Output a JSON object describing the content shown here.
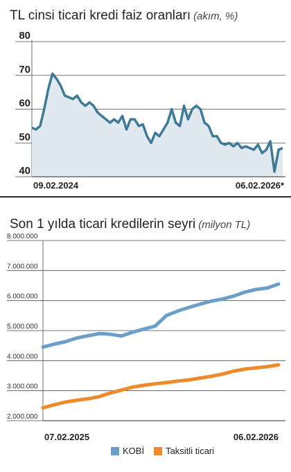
{
  "chart_data": [
    {
      "type": "area",
      "title": "TL cinsi ticari kredi faiz oranları",
      "subtitle": "(akım, %)",
      "ylim": [
        40,
        80
      ],
      "y_ticks": [
        "80",
        "70",
        "60",
        "50",
        "40"
      ],
      "x_start_label": "09.02.2024",
      "x_end_label": "06.02.2026*",
      "grid": true,
      "color": "#3e7a96",
      "fill": "#e1e9f0",
      "values": [
        54.5,
        54,
        55,
        60,
        66,
        70.5,
        69,
        67,
        64,
        63.5,
        63,
        64,
        62,
        61,
        62,
        61,
        59,
        58,
        57,
        56,
        57,
        56,
        58,
        54,
        57,
        57,
        55,
        55.5,
        52,
        50,
        53,
        52,
        54,
        56,
        60,
        56,
        55,
        61,
        57,
        60,
        61,
        60,
        56,
        55,
        52,
        52,
        50,
        49.5,
        50,
        49,
        50,
        48.5,
        49,
        48.5,
        48,
        49.5,
        47,
        48,
        50.5,
        41.5,
        48,
        48.5
      ]
    },
    {
      "type": "line",
      "title": "Son 1 yılda ticari kredilerin seyri",
      "subtitle": "(milyon TL)",
      "ylim": [
        2000000,
        8000000
      ],
      "y_ticks": [
        "8.000.000",
        "7.000.000",
        "6.000.000",
        "5.000.000",
        "4.000.000",
        "3.000.000",
        "2.000.000"
      ],
      "x_start_label": "07.02.2025",
      "x_end_label": "06.02.2026",
      "grid": true,
      "legend_position": "bottom",
      "series": [
        {
          "name": "KOBİ",
          "color": "#6b9fc9",
          "values": [
            4450000,
            4550000,
            4630000,
            4750000,
            4830000,
            4900000,
            4880000,
            4820000,
            4950000,
            5050000,
            5150000,
            5500000,
            5650000,
            5770000,
            5880000,
            5980000,
            6050000,
            6150000,
            6280000,
            6370000,
            6420000,
            6550000
          ]
        },
        {
          "name": "Taksitli ticari",
          "color": "#ef8a2a",
          "values": [
            2430000,
            2530000,
            2620000,
            2680000,
            2730000,
            2800000,
            2920000,
            3020000,
            3120000,
            3180000,
            3230000,
            3270000,
            3320000,
            3360000,
            3420000,
            3480000,
            3550000,
            3650000,
            3720000,
            3760000,
            3800000,
            3860000
          ]
        }
      ]
    }
  ]
}
